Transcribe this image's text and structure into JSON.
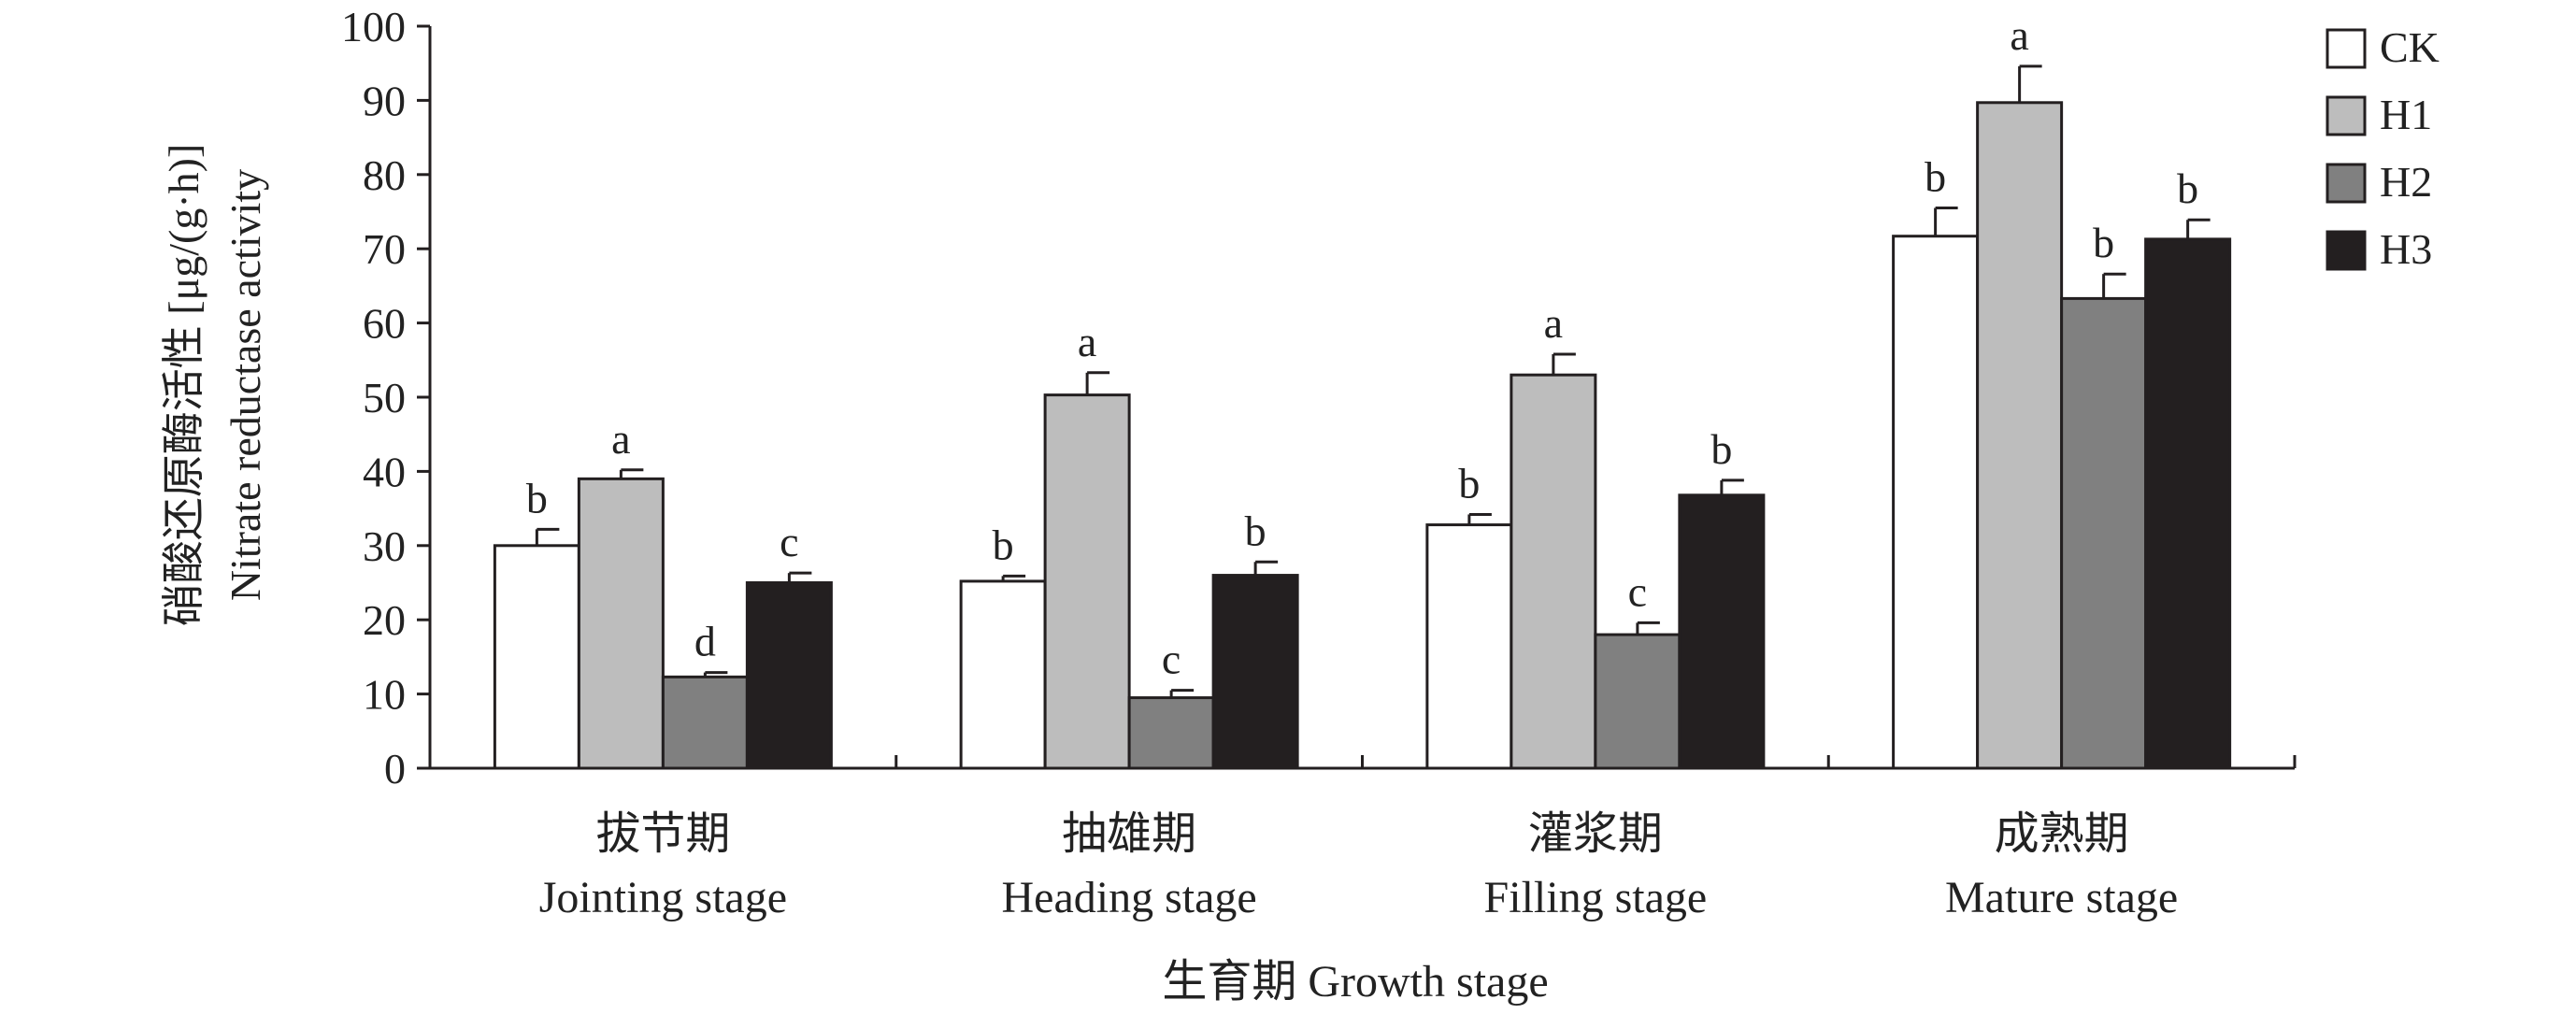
{
  "chart_data": {
    "type": "bar",
    "ylabel_cn": "硝酸还原酶活性 [μg/(g·h)]",
    "ylabel_en": "Nitrate reductase activity",
    "xlabel": "生育期 Growth stage",
    "ylim": [
      0,
      100
    ],
    "yticks": [
      "0",
      "10",
      "20",
      "30",
      "40",
      "50",
      "60",
      "70",
      "80",
      "90",
      "100"
    ],
    "categories": [
      {
        "cn": "拔节期",
        "en": "Jointing stage"
      },
      {
        "cn": "抽雄期",
        "en": "Heading stage"
      },
      {
        "cn": "灌浆期",
        "en": "Filling stage"
      },
      {
        "cn": "成熟期",
        "en": "Mature stage"
      }
    ],
    "series": [
      {
        "name": "CK",
        "color": "#ffffff",
        "values": [
          30.0,
          25.2,
          32.8,
          71.7
        ],
        "errors": [
          2.2,
          0.7,
          1.4,
          3.8
        ],
        "labels": [
          "b",
          "b",
          "b",
          "b"
        ]
      },
      {
        "name": "H1",
        "color": "#bdbdbd",
        "values": [
          39.0,
          50.3,
          53.0,
          89.7
        ],
        "errors": [
          1.2,
          3.0,
          2.8,
          4.9
        ],
        "labels": [
          "a",
          "a",
          "a",
          "a"
        ]
      },
      {
        "name": "H2",
        "color": "#808080",
        "values": [
          12.3,
          9.5,
          18.0,
          63.3
        ],
        "errors": [
          0.6,
          1.0,
          1.6,
          3.3
        ],
        "labels": [
          "d",
          "c",
          "c",
          "b"
        ]
      },
      {
        "name": "H3",
        "color": "#231f20",
        "values": [
          25.0,
          26.0,
          36.8,
          71.3
        ],
        "errors": [
          1.3,
          1.8,
          2.0,
          2.6
        ],
        "labels": [
          "c",
          "b",
          "b",
          "b"
        ]
      }
    ],
    "grid": false,
    "legend_position": "top-right"
  }
}
